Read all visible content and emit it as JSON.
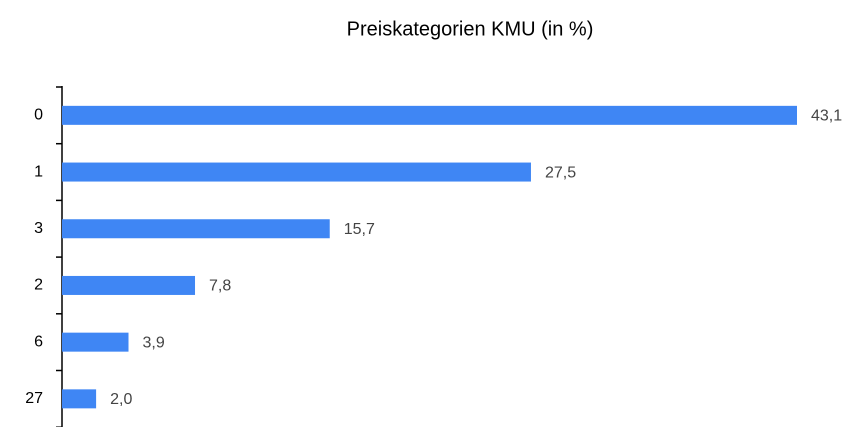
{
  "chart_data": {
    "type": "barh",
    "title": "Preiskategorien KMU (in %)",
    "categories": [
      "0",
      "1",
      "3",
      "2",
      "6",
      "27"
    ],
    "values": [
      43.1,
      27.5,
      15.7,
      7.8,
      3.9,
      2.0
    ],
    "value_labels": [
      "43,1",
      "27,5",
      "15,7",
      "7,8",
      "3,9",
      "2,0"
    ],
    "color": "#3f86f4"
  }
}
